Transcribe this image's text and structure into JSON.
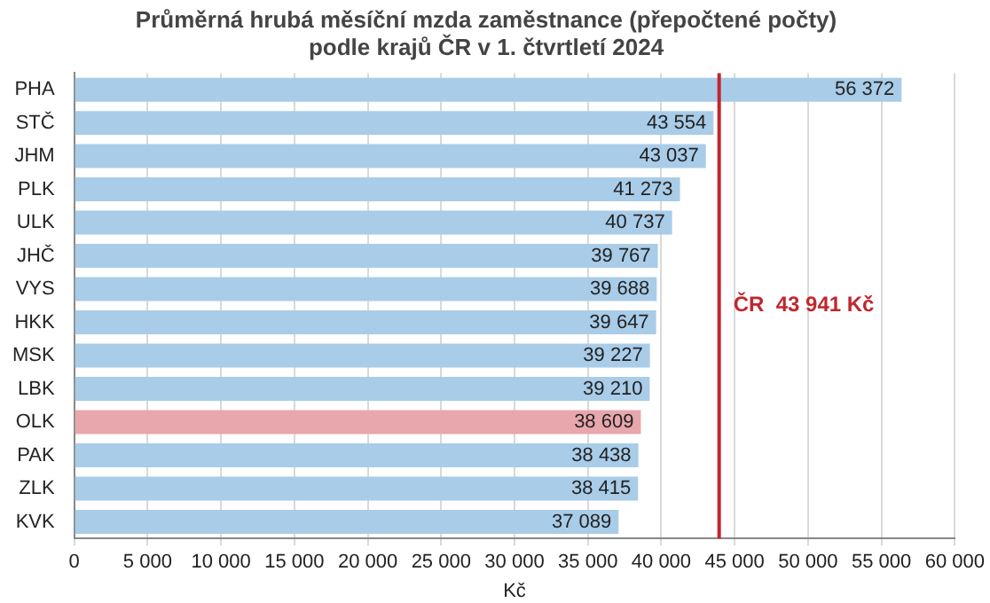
{
  "chart_data": {
    "type": "bar",
    "orientation": "horizontal",
    "title": "Průměrná hrubá měsíční mzda zaměstnance (přepočtené počty)\npodle krajů ČR v 1. čtvrtletí 2024",
    "xlabel": "Kč",
    "categories": [
      "PHA",
      "STČ",
      "JHM",
      "PLK",
      "ULK",
      "JHČ",
      "VYS",
      "HKK",
      "MSK",
      "LBK",
      "OLK",
      "PAK",
      "ZLK",
      "KVK"
    ],
    "values": [
      56372,
      43554,
      43037,
      41273,
      40737,
      39767,
      39688,
      39647,
      39227,
      39210,
      38609,
      38438,
      38415,
      37089
    ],
    "value_labels": [
      "56 372",
      "43 554",
      "43 037",
      "41 273",
      "40 737",
      "39 767",
      "39 688",
      "39 647",
      "39 227",
      "39 210",
      "38 609",
      "38 438",
      "38 415",
      "37 089"
    ],
    "colors": [
      "#a9cce8",
      "#a9cce8",
      "#a9cce8",
      "#a9cce8",
      "#a9cce8",
      "#a9cce8",
      "#a9cce8",
      "#a9cce8",
      "#a9cce8",
      "#a9cce8",
      "#e8a7ad",
      "#a9cce8",
      "#a9cce8",
      "#a9cce8"
    ],
    "xlim": [
      0,
      60000
    ],
    "xticks": [
      0,
      {
        "value": 5000,
        "label": "5 000"
      },
      {
        "value": 10000,
        "label": "10 000"
      },
      {
        "value": 15000,
        "label": "15 000"
      },
      {
        "value": 20000,
        "label": "20 000"
      },
      {
        "value": 25000,
        "label": "25 000"
      },
      {
        "value": 30000,
        "label": "30 000"
      },
      {
        "value": 35000,
        "label": "35 000"
      },
      {
        "value": 40000,
        "label": "40 000"
      },
      {
        "value": 45000,
        "label": "45 000"
      },
      {
        "value": 50000,
        "label": "50 000"
      },
      {
        "value": 55000,
        "label": "55 000"
      },
      {
        "value": 60000,
        "label": "60 000"
      }
    ],
    "grid": "x",
    "ref_lines": [
      {
        "axis": "x",
        "value": 43941,
        "label": "ČR  43 941 Kč",
        "color": "#c0272d"
      }
    ]
  }
}
